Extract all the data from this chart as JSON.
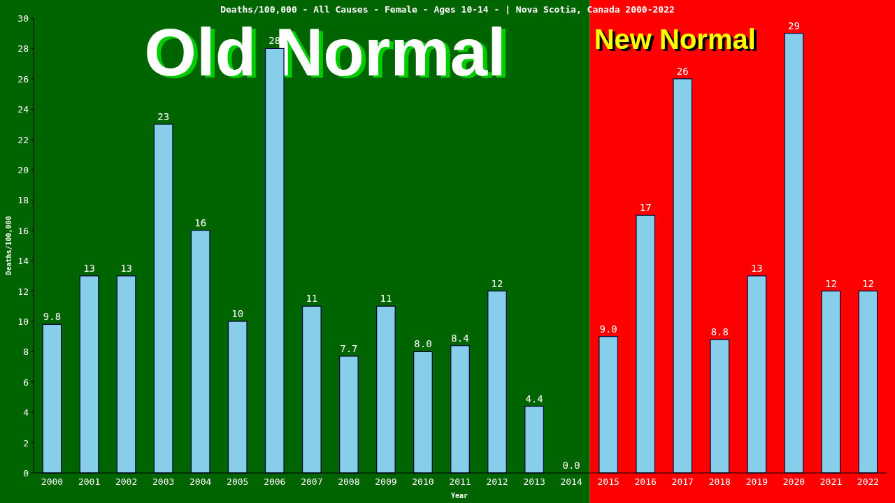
{
  "chart_data": {
    "type": "bar",
    "title": "Deaths/100,000 - All Causes - Female - Ages 10-14 -  | Nova Scotia, Canada 2000-2022",
    "xlabel": "Year",
    "ylabel": "Deaths/100,000",
    "categories": [
      "2000",
      "2001",
      "2002",
      "2003",
      "2004",
      "2005",
      "2006",
      "2007",
      "2008",
      "2009",
      "2010",
      "2011",
      "2012",
      "2013",
      "2014",
      "2015",
      "2016",
      "2017",
      "2018",
      "2019",
      "2020",
      "2021",
      "2022"
    ],
    "values": [
      9.8,
      13,
      13,
      23,
      16,
      10,
      28,
      11,
      7.7,
      11,
      8.0,
      8.4,
      12,
      4.4,
      0.0,
      9.0,
      17,
      26,
      8.8,
      13,
      29,
      12,
      12
    ],
    "value_labels": [
      "9.8",
      "13",
      "13",
      "23",
      "16",
      "10",
      "28",
      "11",
      "7.7",
      "11",
      "8.0",
      "8.4",
      "12",
      "4.4",
      "0.0",
      "9.0",
      "17",
      "26",
      "8.8",
      "13",
      "29",
      "12",
      "12"
    ],
    "color": "#87ceeb",
    "ylim": [
      0,
      30
    ],
    "yticks": [
      0,
      2,
      4,
      6,
      8,
      10,
      12,
      14,
      16,
      18,
      20,
      22,
      24,
      26,
      28,
      30
    ],
    "grid": false,
    "bands": [
      {
        "axis": "x",
        "from": "2000",
        "to": "2014",
        "label": "Old Normal",
        "color": "#006400"
      },
      {
        "axis": "x",
        "from": "2015",
        "to": "2022",
        "label": "New Normal",
        "color": "#ff0000"
      }
    ]
  }
}
